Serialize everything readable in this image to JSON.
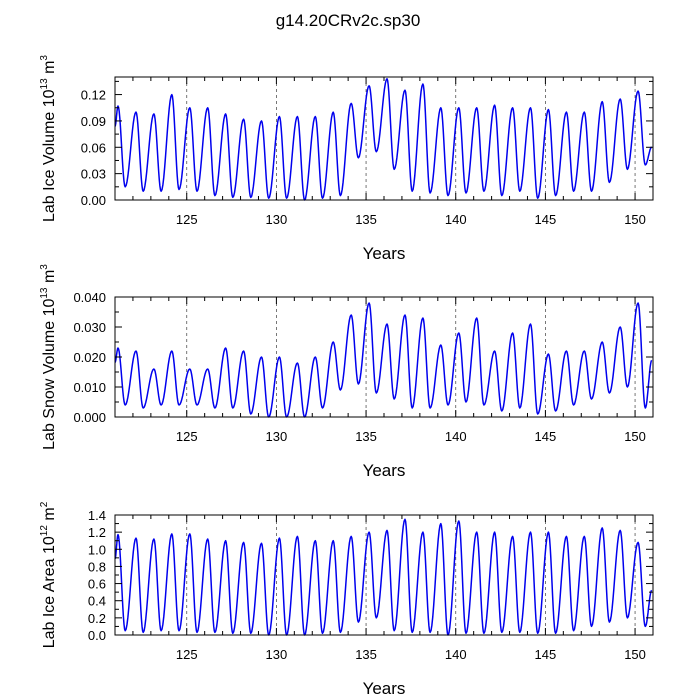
{
  "chart_data": [
    {
      "type": "line",
      "title": "g14.20CRv2c.sp30",
      "xlabel": "Years",
      "ylabel": {
        "main": "Lab Ice Volume 10",
        "exp": "13",
        "unit": " m",
        "unit_exp": "3"
      },
      "xlim": [
        121,
        151
      ],
      "ylim": [
        0,
        0.14
      ],
      "xticks": [
        125,
        130,
        135,
        140,
        145,
        150
      ],
      "yticks": [
        "0.00",
        "0.03",
        "0.06",
        "0.09",
        "0.12"
      ],
      "ytick_values": [
        0,
        0.03,
        0.06,
        0.09,
        0.12
      ],
      "series": [
        {
          "name": "Lab Ice Volume",
          "color": "#0000ee",
          "annual_max": [
            0.107,
            0.1,
            0.098,
            0.12,
            0.105,
            0.105,
            0.098,
            0.092,
            0.09,
            0.095,
            0.095,
            0.095,
            0.1,
            0.11,
            0.13,
            0.138,
            0.125,
            0.132,
            0.105,
            0.105,
            0.105,
            0.108,
            0.105,
            0.105,
            0.103,
            0.1,
            0.1,
            0.112,
            0.115,
            0.124
          ],
          "annual_min": [
            0.015,
            0.01,
            0.01,
            0.012,
            0.01,
            0.005,
            0.003,
            0.003,
            0.002,
            0.002,
            0.0,
            0.002,
            0.005,
            0.048,
            0.055,
            0.035,
            0.01,
            0.008,
            0.005,
            0.008,
            0.01,
            0.005,
            0.01,
            0.002,
            0.005,
            0.01,
            0.01,
            0.02,
            0.035,
            0.04
          ],
          "end_min": 0.01
        }
      ]
    },
    {
      "type": "line",
      "title": "",
      "xlabel": "Years",
      "ylabel": {
        "main": "Lab Snow Volume 10",
        "exp": "13",
        "unit": " m",
        "unit_exp": "3"
      },
      "xlim": [
        121,
        151
      ],
      "ylim": [
        0,
        0.04
      ],
      "xticks": [
        125,
        130,
        135,
        140,
        145,
        150
      ],
      "yticks": [
        "0.000",
        "0.010",
        "0.020",
        "0.030",
        "0.040"
      ],
      "ytick_values": [
        0,
        0.01,
        0.02,
        0.03,
        0.04
      ],
      "series": [
        {
          "name": "Lab Snow Volume",
          "color": "#0000ee",
          "annual_max": [
            0.023,
            0.022,
            0.016,
            0.022,
            0.016,
            0.016,
            0.023,
            0.022,
            0.02,
            0.02,
            0.018,
            0.02,
            0.025,
            0.034,
            0.038,
            0.031,
            0.034,
            0.033,
            0.024,
            0.028,
            0.033,
            0.022,
            0.028,
            0.031,
            0.021,
            0.022,
            0.022,
            0.025,
            0.03,
            0.038
          ],
          "annual_min": [
            0.004,
            0.003,
            0.004,
            0.004,
            0.004,
            0.003,
            0.003,
            0.001,
            0.0,
            0.0,
            0.0,
            0.003,
            0.009,
            0.011,
            0.008,
            0.006,
            0.003,
            0.003,
            0.004,
            0.005,
            0.004,
            0.002,
            0.003,
            0.001,
            0.002,
            0.004,
            0.006,
            0.008,
            0.01,
            0.003
          ],
          "end_min": 0.004
        }
      ]
    },
    {
      "type": "line",
      "title": "",
      "xlabel": "Years",
      "ylabel": {
        "main": "Lab Ice Area 10",
        "exp": "12",
        "unit": " m",
        "unit_exp": "2"
      },
      "xlim": [
        121,
        151
      ],
      "ylim": [
        0,
        1.4
      ],
      "xticks": [
        125,
        130,
        135,
        140,
        145,
        150
      ],
      "yticks": [
        "0.0",
        "0.2",
        "0.4",
        "0.6",
        "0.8",
        "1.0",
        "1.2",
        "1.4"
      ],
      "ytick_values": [
        0,
        0.2,
        0.4,
        0.6,
        0.8,
        1.0,
        1.2,
        1.4
      ],
      "series": [
        {
          "name": "Lab Ice Area",
          "color": "#0000ee",
          "annual_max": [
            1.17,
            1.13,
            1.12,
            1.18,
            1.18,
            1.12,
            1.1,
            1.08,
            1.07,
            1.13,
            1.15,
            1.1,
            1.1,
            1.15,
            1.2,
            1.22,
            1.35,
            1.2,
            1.3,
            1.33,
            1.2,
            1.2,
            1.15,
            1.2,
            1.2,
            1.15,
            1.15,
            1.25,
            1.22,
            1.08
          ],
          "annual_min": [
            0.05,
            0.03,
            0.05,
            0.05,
            0.03,
            0.03,
            0.02,
            0.02,
            0.0,
            0.0,
            0.0,
            0.02,
            0.03,
            0.15,
            0.2,
            0.05,
            0.03,
            0.03,
            0.0,
            0.02,
            0.02,
            0.03,
            0.03,
            0.02,
            0.02,
            0.05,
            0.1,
            0.15,
            0.2,
            0.1
          ],
          "end_min": 0.08
        }
      ]
    }
  ]
}
